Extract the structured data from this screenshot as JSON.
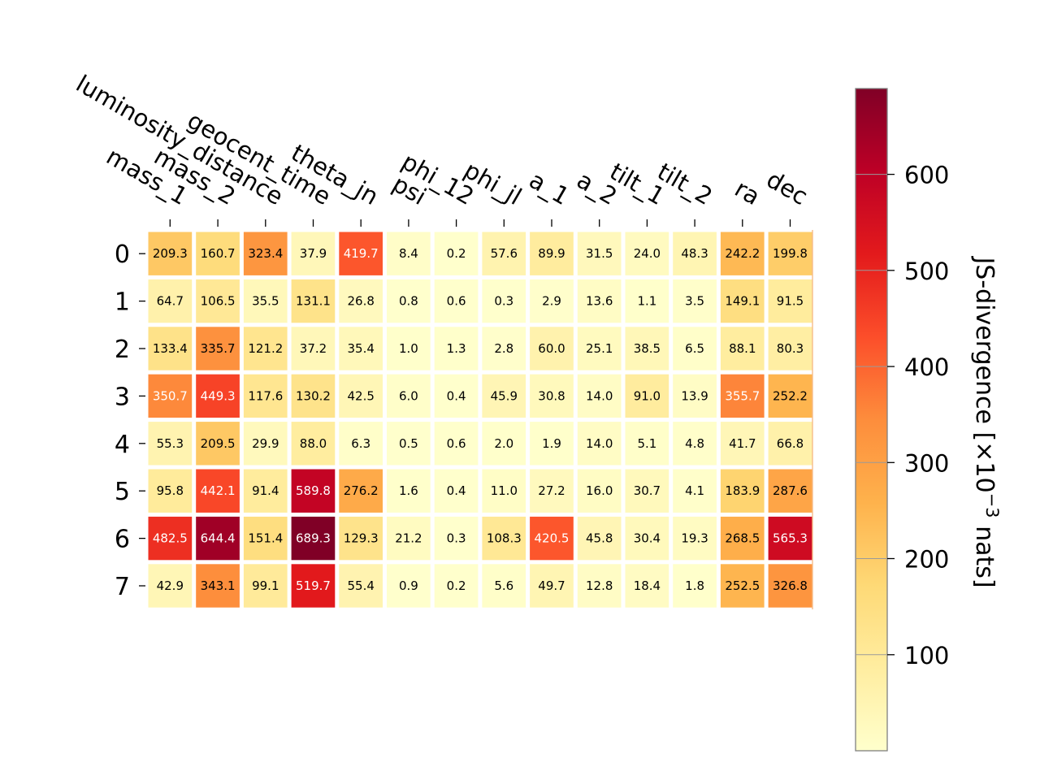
{
  "chart_data": {
    "type": "heatmap",
    "title": "",
    "columns": [
      "mass_1",
      "mass_2",
      "luminosity_distance",
      "geocent_time",
      "theta_jn",
      "psi",
      "phi_12",
      "phi_jl",
      "a_1",
      "a_2",
      "tilt_1",
      "tilt_2",
      "ra",
      "dec"
    ],
    "rows": [
      "0",
      "1",
      "2",
      "3",
      "4",
      "5",
      "6",
      "7"
    ],
    "values": [
      [
        209.3,
        160.7,
        323.4,
        37.9,
        419.7,
        8.4,
        0.2,
        57.6,
        89.9,
        31.5,
        24.0,
        48.3,
        242.2,
        199.8
      ],
      [
        64.7,
        106.5,
        35.5,
        131.1,
        26.8,
        0.8,
        0.6,
        0.3,
        2.9,
        13.6,
        1.1,
        3.5,
        149.1,
        91.5
      ],
      [
        133.4,
        335.7,
        121.2,
        37.2,
        35.4,
        1.0,
        1.3,
        2.8,
        60.0,
        25.1,
        38.5,
        6.5,
        88.1,
        80.3
      ],
      [
        350.7,
        449.3,
        117.6,
        130.2,
        42.5,
        6.0,
        0.4,
        45.9,
        30.8,
        14.0,
        91.0,
        13.9,
        355.7,
        252.2
      ],
      [
        55.3,
        209.5,
        29.9,
        88.0,
        6.3,
        0.5,
        0.6,
        2.0,
        1.9,
        14.0,
        5.1,
        4.8,
        41.7,
        66.8
      ],
      [
        95.8,
        442.1,
        91.4,
        589.8,
        276.2,
        1.6,
        0.4,
        11.0,
        27.2,
        16.0,
        30.7,
        4.1,
        183.9,
        287.6
      ],
      [
        482.5,
        644.4,
        151.4,
        689.3,
        129.3,
        21.2,
        0.3,
        108.3,
        420.5,
        45.8,
        30.4,
        19.3,
        268.5,
        565.3
      ],
      [
        42.9,
        343.1,
        99.1,
        519.7,
        55.4,
        0.9,
        0.2,
        5.6,
        49.7,
        12.8,
        18.4,
        1.8,
        252.5,
        326.8
      ]
    ],
    "colorbar": {
      "label_main": "JS-divergence [×10",
      "label_exp": "−3",
      "label_unit": " nats]",
      "min": 0,
      "max": 689.3,
      "ticks": [
        100,
        200,
        300,
        400,
        500,
        600
      ],
      "colormap": "YlOrRd"
    },
    "grid": false
  }
}
